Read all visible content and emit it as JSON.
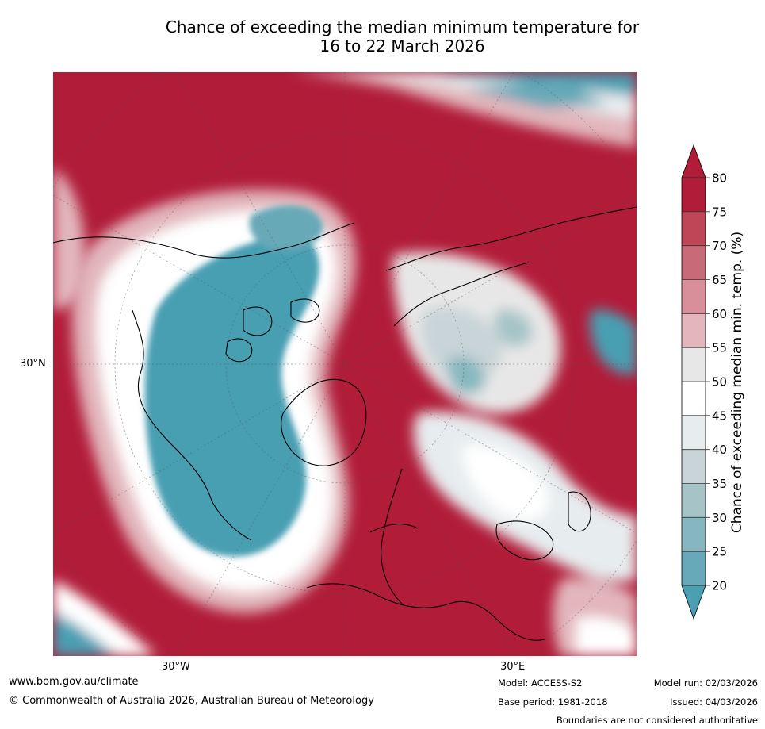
{
  "title": {
    "line1": "Chance of exceeding the median minimum temperature for",
    "line2": "16 to 22 March 2026"
  },
  "map": {
    "projection": "polar stereographic, northern hemisphere",
    "labels": {
      "lat_left": "30°N",
      "lon_bottom_left": "30°W",
      "lon_bottom_right": "30°E"
    }
  },
  "colorbar": {
    "title": "Chance of exceeding median min. temp. (%)",
    "ticks": [
      "20",
      "25",
      "30",
      "35",
      "40",
      "45",
      "50",
      "55",
      "60",
      "65",
      "70",
      "75",
      "80"
    ],
    "colors": [
      "#4a9fb2",
      "#67a9b8",
      "#86b7c0",
      "#a6c4c8",
      "#c8d4d7",
      "#e7ecee",
      "#ffffff",
      "#e8e7e7",
      "#e2b6bc",
      "#d98f9a",
      "#c86a78",
      "#bd4657",
      "#b11c39"
    ],
    "under_color": "#4a9fb2",
    "over_color": "#b11c39"
  },
  "footer": {
    "website": "www.bom.gov.au/climate",
    "copyright": "© Commonwealth of Australia 2026, Australian Bureau of Meteorology",
    "model": "Model: ACCESS-S2",
    "base_period": "Base period: 1981-2018",
    "model_run": "Model run: 02/03/2026",
    "issued": "Issued: 04/03/2026",
    "disclaimer": "Boundaries are not considered authoritative"
  }
}
